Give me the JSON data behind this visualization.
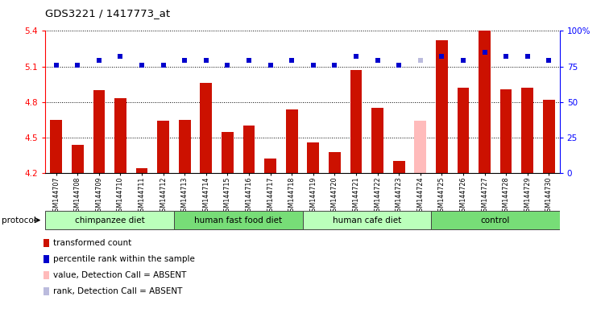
{
  "title": "GDS3221 / 1417773_at",
  "samples": [
    "GSM144707",
    "GSM144708",
    "GSM144709",
    "GSM144710",
    "GSM144711",
    "GSM144712",
    "GSM144713",
    "GSM144714",
    "GSM144715",
    "GSM144716",
    "GSM144717",
    "GSM144718",
    "GSM144719",
    "GSM144720",
    "GSM144721",
    "GSM144722",
    "GSM144723",
    "GSM144724",
    "GSM144725",
    "GSM144726",
    "GSM144727",
    "GSM144728",
    "GSM144729",
    "GSM144730"
  ],
  "bar_values": [
    4.65,
    4.44,
    4.9,
    4.83,
    4.24,
    4.64,
    4.65,
    4.96,
    4.55,
    4.6,
    4.32,
    4.74,
    4.46,
    4.38,
    5.07,
    4.75,
    4.3,
    4.64,
    5.32,
    4.92,
    5.4,
    4.91,
    4.92,
    4.82
  ],
  "bar_colors": [
    "#cc1100",
    "#cc1100",
    "#cc1100",
    "#cc1100",
    "#cc1100",
    "#cc1100",
    "#cc1100",
    "#cc1100",
    "#cc1100",
    "#cc1100",
    "#cc1100",
    "#cc1100",
    "#cc1100",
    "#cc1100",
    "#cc1100",
    "#cc1100",
    "#cc1100",
    "#ffbbbb",
    "#cc1100",
    "#cc1100",
    "#cc1100",
    "#cc1100",
    "#cc1100",
    "#cc1100"
  ],
  "dot_values": [
    76,
    76,
    79,
    82,
    76,
    76,
    79,
    79,
    76,
    79,
    76,
    79,
    76,
    76,
    82,
    79,
    76,
    79,
    82,
    79,
    85,
    82,
    82,
    79
  ],
  "dot_colors": [
    "#0000cc",
    "#0000cc",
    "#0000cc",
    "#0000cc",
    "#0000cc",
    "#0000cc",
    "#0000cc",
    "#0000cc",
    "#0000cc",
    "#0000cc",
    "#0000cc",
    "#0000cc",
    "#0000cc",
    "#0000cc",
    "#0000cc",
    "#0000cc",
    "#0000cc",
    "#bbbbdd",
    "#0000cc",
    "#0000cc",
    "#0000cc",
    "#0000cc",
    "#0000cc",
    "#0000cc"
  ],
  "ylim": [
    4.2,
    5.4
  ],
  "yticks_left": [
    4.2,
    4.5,
    4.8,
    5.1,
    5.4
  ],
  "right_axis_ticks": [
    0,
    25,
    50,
    75,
    100
  ],
  "groups": [
    {
      "label": "chimpanzee diet",
      "start": 0,
      "end": 6,
      "color": "#bbffbb"
    },
    {
      "label": "human fast food diet",
      "start": 6,
      "end": 12,
      "color": "#77dd77"
    },
    {
      "label": "human cafe diet",
      "start": 12,
      "end": 18,
      "color": "#bbffbb"
    },
    {
      "label": "control",
      "start": 18,
      "end": 24,
      "color": "#77dd77"
    }
  ],
  "bar_bottom": 4.2,
  "bar_width": 0.55
}
